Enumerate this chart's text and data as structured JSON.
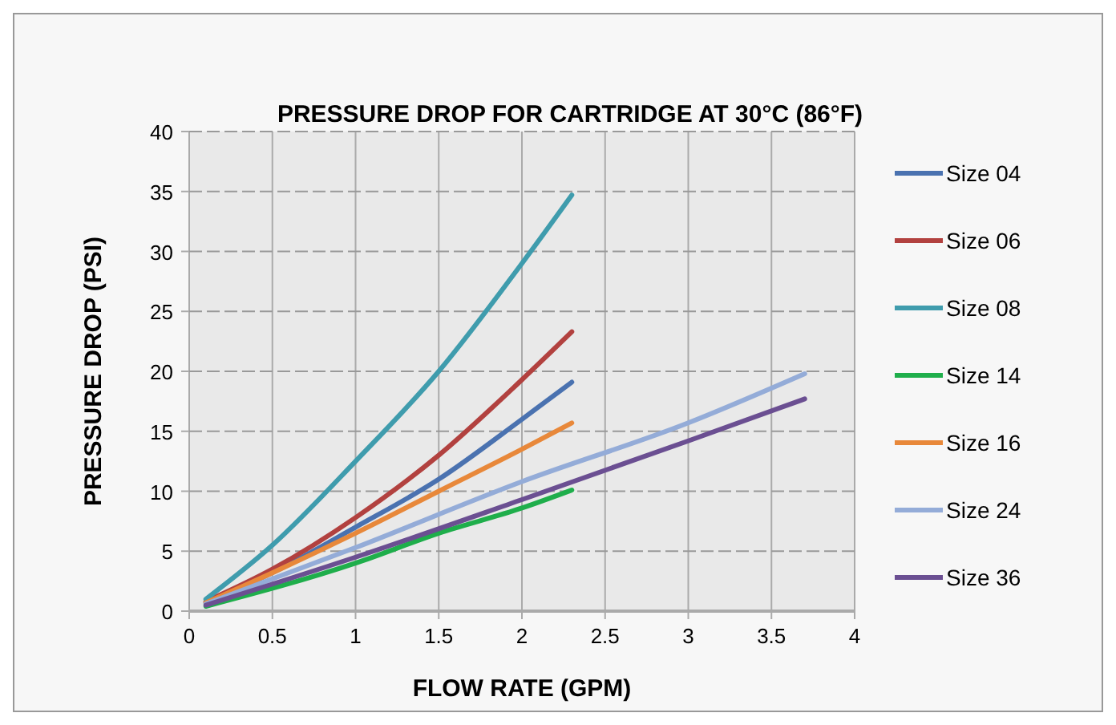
{
  "chart_data": {
    "type": "line",
    "title": "PRESSURE DROP FOR CARTRIDGE AT 30°C (86°F)",
    "xlabel": "FLOW RATE (GPM)",
    "ylabel": "PRESSURE DROP (PSI)",
    "xlim": [
      0,
      4
    ],
    "xticks": [
      0,
      0.5,
      1,
      1.5,
      2,
      2.5,
      3,
      3.5,
      4
    ],
    "ylim": [
      0,
      40
    ],
    "yticks": [
      0,
      5,
      10,
      15,
      20,
      25,
      30,
      35,
      40
    ],
    "grid": true,
    "legend": "right",
    "marker": "none",
    "line_style": "solid",
    "series": [
      {
        "name": "Size 04",
        "color": "#4a72b0",
        "x": [
          0.1,
          0.5,
          1,
          1.5,
          2,
          2.3
        ],
        "values": [
          0.7,
          3.2,
          7,
          11,
          16,
          19.1
        ]
      },
      {
        "name": "Size 06",
        "color": "#b2413f",
        "x": [
          0.1,
          0.5,
          1,
          1.5,
          2,
          2.3
        ],
        "values": [
          0.8,
          3.5,
          7.8,
          13,
          19.3,
          23.3
        ]
      },
      {
        "name": "Size 08",
        "color": "#3f9cad",
        "x": [
          0.1,
          0.5,
          1,
          1.5,
          2,
          2.3
        ],
        "values": [
          1,
          5.5,
          12.5,
          20,
          29,
          34.7
        ]
      },
      {
        "name": "Size 14",
        "color": "#1fae4b",
        "x": [
          0.1,
          1,
          1.5,
          2,
          2.3
        ],
        "values": [
          0.4,
          4,
          6.5,
          8.6,
          10.1
        ]
      },
      {
        "name": "Size 16",
        "color": "#e8883a",
        "x": [
          0.1,
          0.5,
          1,
          1.5,
          2,
          2.3
        ],
        "values": [
          0.7,
          3.2,
          6.5,
          10,
          13.5,
          15.7
        ]
      },
      {
        "name": "Size 24",
        "color": "#94acd8",
        "x": [
          0.1,
          1,
          2,
          3,
          3.7
        ],
        "values": [
          0.6,
          5.3,
          10.8,
          15.7,
          19.8
        ]
      },
      {
        "name": "Size 36",
        "color": "#6b4f92",
        "x": [
          0.1,
          1,
          2,
          3,
          3.7
        ],
        "values": [
          0.5,
          4.5,
          9.3,
          14.2,
          17.7
        ]
      }
    ]
  }
}
